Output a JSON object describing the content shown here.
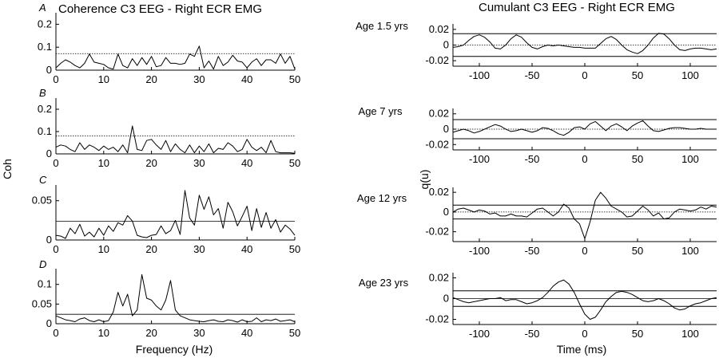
{
  "figure": {
    "left_title": "Coherence C3 EEG - Right ECR EMG",
    "right_title": "Cumulant C3 EEG - Right ECR EMG",
    "left_ylabel": "Coh",
    "right_ylabel": "q(u)",
    "left_xlabel": "Frequency (Hz)",
    "right_xlabel": "Time (ms)",
    "ages": [
      "Age 1.5 yrs",
      "Age 7 yrs",
      "Age 12 yrs",
      "Age 23 yrs"
    ],
    "panel_letters": [
      "A",
      "B",
      "C",
      "D"
    ]
  },
  "chart_data": [
    {
      "type": "line",
      "panel": "A",
      "xlim": [
        0,
        50
      ],
      "ylim": [
        0,
        0.25
      ],
      "xticks": [
        0,
        10,
        20,
        30,
        40,
        50
      ],
      "yticks": [
        0,
        0.1,
        0.2
      ],
      "yticklabels": [
        "0",
        "0.1",
        "0.2"
      ],
      "confidence_limit": 0.072,
      "x": [
        0,
        1,
        2,
        3,
        4,
        5,
        6,
        7,
        8,
        9,
        10,
        11,
        12,
        13,
        14,
        15,
        16,
        17,
        18,
        19,
        20,
        21,
        22,
        23,
        24,
        25,
        26,
        27,
        28,
        29,
        30,
        31,
        32,
        33,
        34,
        35,
        36,
        37,
        38,
        39,
        40,
        41,
        42,
        43,
        44,
        45,
        46,
        47,
        48,
        49,
        50
      ],
      "y": [
        0.01,
        0.03,
        0.045,
        0.035,
        0.02,
        0.01,
        0.03,
        0.07,
        0.035,
        0.03,
        0.025,
        0.01,
        0.005,
        0.07,
        0.02,
        0.01,
        0.05,
        0.02,
        0.055,
        0.025,
        0.06,
        0.015,
        0.02,
        0.055,
        0.03,
        0.03,
        0.025,
        0.03,
        0.07,
        0.06,
        0.105,
        0.01,
        0.04,
        0.005,
        0.06,
        0.02,
        0.035,
        0.065,
        0.04,
        0.035,
        0.01,
        0.035,
        0.05,
        0.02,
        0.045,
        0.045,
        0.03,
        0.07,
        0.03,
        0.06,
        0.005
      ]
    },
    {
      "type": "line",
      "panel": "B",
      "xlim": [
        0,
        50
      ],
      "ylim": [
        0,
        0.25
      ],
      "xticks": [
        0,
        10,
        20,
        30,
        40,
        50
      ],
      "yticks": [
        0,
        0.1,
        0.2
      ],
      "yticklabels": [
        "0",
        "0.1",
        "0.2"
      ],
      "confidence_limit": 0.08,
      "x": [
        0,
        1,
        2,
        3,
        4,
        5,
        6,
        7,
        8,
        9,
        10,
        11,
        12,
        13,
        14,
        15,
        16,
        17,
        18,
        19,
        20,
        21,
        22,
        23,
        24,
        25,
        26,
        27,
        28,
        29,
        30,
        31,
        32,
        33,
        34,
        35,
        36,
        37,
        38,
        39,
        40,
        41,
        42,
        43,
        44,
        45,
        46,
        47,
        48,
        49,
        50
      ],
      "y": [
        0.03,
        0.04,
        0.035,
        0.02,
        0.01,
        0.05,
        0.02,
        0.04,
        0.03,
        0.015,
        0.035,
        0.02,
        0.03,
        0.01,
        0.04,
        0.005,
        0.125,
        0.02,
        0.015,
        0.06,
        0.065,
        0.04,
        0.02,
        0.06,
        0.01,
        0.045,
        0.02,
        0.005,
        0.04,
        0.005,
        0.035,
        0.01,
        0.045,
        0.005,
        0.025,
        0.02,
        0.05,
        0.035,
        0.01,
        0.02,
        0.065,
        0.03,
        0.015,
        0.03,
        0.005,
        0.06,
        0.01,
        0.005,
        0.005,
        0.005,
        0.003
      ]
    },
    {
      "type": "line",
      "panel": "C",
      "xlim": [
        0,
        50
      ],
      "ylim": [
        0,
        0.07
      ],
      "xticks": [
        0,
        10,
        20,
        30,
        40,
        50
      ],
      "yticks": [
        0,
        0.05
      ],
      "yticklabels": [
        "0",
        "0.05"
      ],
      "confidence_limit": 0.024,
      "x": [
        0,
        1,
        2,
        3,
        4,
        5,
        6,
        7,
        8,
        9,
        10,
        11,
        12,
        13,
        14,
        15,
        16,
        17,
        18,
        19,
        20,
        21,
        22,
        23,
        24,
        25,
        26,
        27,
        28,
        29,
        30,
        31,
        32,
        33,
        34,
        35,
        36,
        37,
        38,
        39,
        40,
        41,
        42,
        43,
        44,
        45,
        46,
        47,
        48,
        49,
        50
      ],
      "y": [
        0.006,
        0.005,
        0.002,
        0.015,
        0.008,
        0.02,
        0.005,
        0.01,
        0.004,
        0.015,
        0.006,
        0.018,
        0.011,
        0.022,
        0.019,
        0.031,
        0.024,
        0.006,
        0.004,
        0.003,
        0.006,
        0.007,
        0.018,
        0.008,
        0.012,
        0.025,
        0.007,
        0.063,
        0.028,
        0.019,
        0.057,
        0.039,
        0.055,
        0.032,
        0.04,
        0.015,
        0.048,
        0.036,
        0.018,
        0.03,
        0.043,
        0.012,
        0.04,
        0.016,
        0.035,
        0.015,
        0.026,
        0.01,
        0.019,
        0.014,
        0.006
      ]
    },
    {
      "type": "line",
      "panel": "D",
      "xlim": [
        0,
        50
      ],
      "ylim": [
        0,
        0.14
      ],
      "xticks": [
        0,
        10,
        20,
        30,
        40,
        50
      ],
      "yticks": [
        0,
        0.05,
        0.1
      ],
      "yticklabels": [
        "0",
        "0.05",
        "0.1"
      ],
      "confidence_limit": 0.024,
      "x": [
        0,
        1,
        2,
        3,
        4,
        5,
        6,
        7,
        8,
        9,
        10,
        11,
        12,
        13,
        14,
        15,
        16,
        17,
        18,
        19,
        20,
        21,
        22,
        23,
        24,
        25,
        26,
        27,
        28,
        29,
        30,
        31,
        32,
        33,
        34,
        35,
        36,
        37,
        38,
        39,
        40,
        41,
        42,
        43,
        44,
        45,
        46,
        47,
        48,
        49,
        50
      ],
      "y": [
        0.02,
        0.015,
        0.01,
        0.008,
        0.005,
        0.012,
        0.015,
        0.008,
        0.005,
        0.01,
        0.005,
        0.008,
        0.03,
        0.08,
        0.045,
        0.075,
        0.02,
        0.035,
        0.125,
        0.065,
        0.06,
        0.045,
        0.035,
        0.06,
        0.11,
        0.035,
        0.02,
        0.015,
        0.01,
        0.008,
        0.006,
        0.005,
        0.008,
        0.01,
        0.006,
        0.005,
        0.01,
        0.008,
        0.004,
        0.01,
        0.005,
        0.006,
        0.015,
        0.005,
        0.01,
        0.008,
        0.012,
        0.006,
        0.008,
        0.01,
        0.005
      ]
    },
    {
      "type": "line",
      "panel": "A-cumulant",
      "xlim": [
        -125,
        125
      ],
      "ylim": [
        -0.027,
        0.027
      ],
      "xticks": [
        -100,
        -50,
        0,
        50,
        100
      ],
      "yticks": [
        -0.02,
        0,
        0.02
      ],
      "yticklabels": [
        "-0.02",
        "0",
        "0.02"
      ],
      "confidence_limits": [
        0.0145,
        -0.0145
      ],
      "x": [
        -125,
        -120,
        -115,
        -110,
        -105,
        -100,
        -95,
        -90,
        -85,
        -80,
        -75,
        -70,
        -65,
        -60,
        -55,
        -50,
        -45,
        -40,
        -35,
        -30,
        -25,
        -20,
        -15,
        -10,
        -5,
        0,
        5,
        10,
        15,
        20,
        25,
        30,
        35,
        40,
        45,
        50,
        55,
        60,
        65,
        70,
        75,
        80,
        85,
        90,
        95,
        100,
        105,
        110,
        115,
        120,
        125
      ],
      "y": [
        -0.003,
        -0.002,
        0.0,
        0.006,
        0.011,
        0.013,
        0.01,
        0.004,
        -0.004,
        -0.005,
        0.0,
        0.008,
        0.013,
        0.01,
        0.003,
        -0.003,
        -0.005,
        -0.002,
        0.0,
        -0.001,
        0.0,
        -0.001,
        -0.002,
        -0.003,
        -0.003,
        -0.004,
        -0.004,
        -0.004,
        0.002,
        0.008,
        0.011,
        0.007,
        0.0,
        -0.006,
        -0.009,
        -0.011,
        -0.007,
        0.0,
        0.009,
        0.015,
        0.014,
        0.008,
        0.0,
        -0.006,
        -0.007,
        -0.005,
        -0.004,
        -0.004,
        -0.005,
        -0.006,
        -0.005
      ]
    },
    {
      "type": "line",
      "panel": "B-cumulant",
      "xlim": [
        -125,
        125
      ],
      "ylim": [
        -0.027,
        0.027
      ],
      "xticks": [
        -100,
        -50,
        0,
        50,
        100
      ],
      "yticks": [
        -0.02,
        0,
        0.02
      ],
      "yticklabels": [
        "-0.02",
        "0",
        "0.02"
      ],
      "confidence_limits": [
        0.0125,
        -0.0125
      ],
      "x": [
        -125,
        -120,
        -115,
        -110,
        -105,
        -100,
        -95,
        -90,
        -85,
        -80,
        -75,
        -70,
        -65,
        -60,
        -55,
        -50,
        -45,
        -40,
        -35,
        -30,
        -25,
        -20,
        -15,
        -10,
        -5,
        0,
        5,
        10,
        15,
        20,
        25,
        30,
        35,
        40,
        45,
        50,
        55,
        60,
        65,
        70,
        75,
        80,
        85,
        90,
        95,
        100,
        105,
        110,
        115,
        120,
        125
      ],
      "y": [
        -0.004,
        -0.002,
        0.0,
        -0.002,
        -0.005,
        -0.003,
        0.0,
        0.003,
        0.006,
        0.004,
        0.0,
        -0.003,
        -0.002,
        0.0,
        -0.002,
        -0.004,
        -0.002,
        0.002,
        0.001,
        -0.002,
        -0.006,
        -0.008,
        -0.004,
        0.002,
        0.003,
        0.0,
        0.007,
        0.01,
        0.004,
        -0.002,
        0.004,
        0.007,
        0.003,
        -0.002,
        0.004,
        0.008,
        0.011,
        0.004,
        -0.002,
        -0.003,
        -0.001,
        0.001,
        0.002,
        0.002,
        0.001,
        0.0,
        0.0,
        0.001,
        0.0,
        0.0,
        0.0
      ]
    },
    {
      "type": "line",
      "panel": "C-cumulant",
      "xlim": [
        -125,
        125
      ],
      "ylim": [
        -0.03,
        0.025
      ],
      "xticks": [
        -100,
        -50,
        0,
        50,
        100
      ],
      "yticks": [
        -0.02,
        0,
        0.02
      ],
      "yticklabels": [
        "-0.02",
        "0",
        "0.02"
      ],
      "confidence_limits": [
        0.007,
        -0.007
      ],
      "x": [
        -125,
        -120,
        -115,
        -110,
        -105,
        -100,
        -95,
        -90,
        -85,
        -80,
        -75,
        -70,
        -65,
        -60,
        -55,
        -50,
        -45,
        -40,
        -35,
        -30,
        -25,
        -20,
        -15,
        -10,
        -5,
        0,
        5,
        10,
        15,
        20,
        25,
        30,
        35,
        40,
        45,
        50,
        55,
        60,
        65,
        70,
        75,
        80,
        85,
        90,
        95,
        100,
        105,
        110,
        115,
        120,
        125
      ],
      "y": [
        0.0,
        0.003,
        0.004,
        0.002,
        0.0,
        0.002,
        0.001,
        -0.002,
        -0.001,
        -0.004,
        -0.004,
        -0.002,
        -0.004,
        -0.004,
        -0.005,
        -0.001,
        0.003,
        0.004,
        0.0,
        -0.004,
        0.0,
        0.008,
        0.004,
        -0.007,
        -0.012,
        -0.027,
        -0.01,
        0.012,
        0.02,
        0.014,
        0.006,
        0.003,
        0.0,
        -0.005,
        -0.004,
        0.001,
        0.006,
        0.002,
        -0.004,
        -0.001,
        -0.007,
        -0.006,
        0.0,
        0.003,
        0.002,
        0.001,
        0.002,
        0.005,
        0.003,
        0.006,
        0.005
      ]
    },
    {
      "type": "line",
      "panel": "D-cumulant",
      "xlim": [
        -125,
        125
      ],
      "ylim": [
        -0.025,
        0.025
      ],
      "xticks": [
        -100,
        -50,
        0,
        50,
        100
      ],
      "yticks": [
        -0.02,
        0,
        0.02
      ],
      "yticklabels": [
        "-0.02",
        "0",
        "0.02"
      ],
      "confidence_limits": [
        0.0075,
        -0.0075
      ],
      "x": [
        -125,
        -120,
        -115,
        -110,
        -105,
        -100,
        -95,
        -90,
        -85,
        -80,
        -75,
        -70,
        -65,
        -60,
        -55,
        -50,
        -45,
        -40,
        -35,
        -30,
        -25,
        -20,
        -15,
        -10,
        -5,
        0,
        5,
        10,
        15,
        20,
        25,
        30,
        35,
        40,
        45,
        50,
        55,
        60,
        65,
        70,
        75,
        80,
        85,
        90,
        95,
        100,
        105,
        110,
        115,
        120,
        125
      ],
      "y": [
        0.001,
        -0.001,
        -0.003,
        -0.004,
        -0.003,
        -0.002,
        -0.001,
        0.0,
        0.0,
        0.001,
        -0.002,
        -0.001,
        -0.001,
        -0.003,
        -0.005,
        -0.004,
        -0.002,
        0.001,
        0.006,
        0.012,
        0.016,
        0.018,
        0.014,
        0.006,
        -0.005,
        -0.015,
        -0.02,
        -0.018,
        -0.011,
        -0.003,
        0.002,
        0.006,
        0.007,
        0.006,
        0.004,
        0.001,
        -0.002,
        -0.003,
        -0.002,
        0.0,
        -0.002,
        -0.005,
        -0.009,
        -0.011,
        -0.01,
        -0.007,
        -0.005,
        -0.004,
        -0.002,
        0.0,
        0.001
      ]
    }
  ]
}
